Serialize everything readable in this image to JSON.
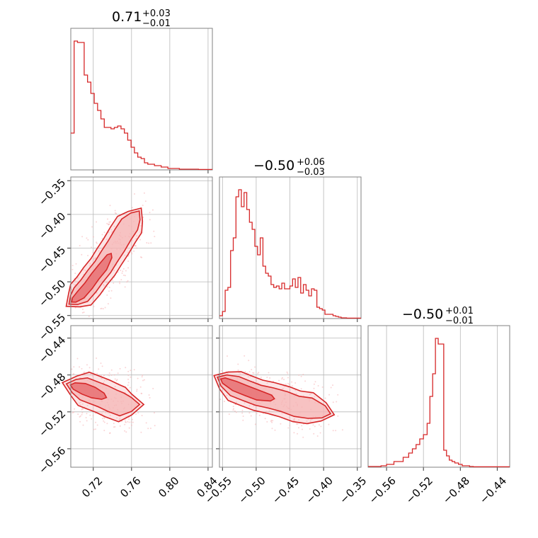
{
  "figure": {
    "type": "corner",
    "color": "#d62728",
    "fill_color": "#f5b3b4"
  },
  "chart_data": [
    {
      "type": "histogram",
      "param": 0,
      "title": {
        "median": "0.71",
        "plus": "+0.03",
        "minus": "−0.01"
      },
      "xlim": [
        0.6965,
        0.8445
      ],
      "x": [
        0.6965,
        0.7,
        0.7035,
        0.707,
        0.7105,
        0.714,
        0.7175,
        0.721,
        0.7245,
        0.728,
        0.7315,
        0.735,
        0.7385,
        0.742,
        0.7455,
        0.749,
        0.7525,
        0.756,
        0.7595,
        0.763,
        0.7665,
        0.77,
        0.7735,
        0.777,
        0.7805,
        0.784,
        0.7875,
        0.791,
        0.7945,
        0.798,
        0.8,
        0.81,
        0.82,
        0.83,
        0.8445
      ],
      "y": [
        0.26,
        0.91,
        0.9,
        0.9,
        0.67,
        0.62,
        0.54,
        0.47,
        0.42,
        0.36,
        0.3,
        0.3,
        0.29,
        0.3,
        0.31,
        0.29,
        0.26,
        0.21,
        0.16,
        0.12,
        0.09,
        0.08,
        0.05,
        0.04,
        0.04,
        0.03,
        0.03,
        0.02,
        0.02,
        0.01,
        0.01,
        0.005,
        0.005,
        0.003,
        0.01
      ],
      "ylim": [
        0,
        1
      ],
      "xticks": [],
      "x_gridlines": [
        0.72,
        0.76,
        0.8,
        0.84
      ]
    },
    {
      "type": "histogram",
      "param": 1,
      "title": {
        "median": "−0.50",
        "plus": "+0.06",
        "minus": "−0.03"
      },
      "xlim": [
        -0.5545,
        -0.3445
      ],
      "x": [
        -0.5545,
        -0.55,
        -0.546,
        -0.542,
        -0.538,
        -0.534,
        -0.53,
        -0.526,
        -0.522,
        -0.518,
        -0.514,
        -0.51,
        -0.506,
        -0.502,
        -0.498,
        -0.494,
        -0.49,
        -0.486,
        -0.482,
        -0.478,
        -0.474,
        -0.47,
        -0.466,
        -0.462,
        -0.458,
        -0.454,
        -0.45,
        -0.446,
        -0.442,
        -0.438,
        -0.434,
        -0.43,
        -0.426,
        -0.422,
        -0.418,
        -0.414,
        -0.41,
        -0.406,
        -0.402,
        -0.398,
        -0.394,
        -0.39,
        -0.386,
        -0.382,
        -0.378,
        -0.374,
        -0.37,
        -0.366,
        -0.362,
        -0.358,
        -0.354,
        -0.35,
        -0.3445
      ],
      "y": [
        0.02,
        0.05,
        0.2,
        0.22,
        0.48,
        0.57,
        0.86,
        0.91,
        0.79,
        0.89,
        0.77,
        0.68,
        0.63,
        0.51,
        0.45,
        0.57,
        0.37,
        0.32,
        0.3,
        0.24,
        0.22,
        0.23,
        0.21,
        0.25,
        0.21,
        0.21,
        0.23,
        0.28,
        0.22,
        0.29,
        0.18,
        0.24,
        0.2,
        0.16,
        0.21,
        0.2,
        0.08,
        0.07,
        0.06,
        0.03,
        0.03,
        0.03,
        0.02,
        0.015,
        0.01,
        0.005,
        0.005,
        0.003,
        0.003,
        0.003,
        0.003,
        0.003,
        0.003
      ],
      "ylim": [
        0,
        1
      ],
      "xticks": [],
      "x_gridlines": [
        -0.55,
        -0.5,
        -0.45,
        -0.4,
        -0.35
      ]
    },
    {
      "type": "histogram",
      "param": 2,
      "title": {
        "median": "−0.50",
        "plus": "+0.01",
        "minus": "−0.01"
      },
      "xlim": [
        -0.58,
        -0.4265
      ],
      "x": [
        -0.58,
        -0.566,
        -0.56,
        -0.556,
        -0.552,
        -0.546,
        -0.542,
        -0.536,
        -0.532,
        -0.528,
        -0.524,
        -0.52,
        -0.516,
        -0.513,
        -0.51,
        -0.507,
        -0.504,
        -0.501,
        -0.498,
        -0.495,
        -0.492,
        -0.489,
        -0.486,
        -0.482,
        -0.478,
        -0.474,
        -0.47,
        -0.466,
        -0.462,
        -0.458,
        -0.454,
        -0.4265
      ],
      "y": [
        0.005,
        0.01,
        0.02,
        0.02,
        0.04,
        0.04,
        0.07,
        0.1,
        0.13,
        0.16,
        0.2,
        0.23,
        0.31,
        0.5,
        0.66,
        0.91,
        0.87,
        0.87,
        0.12,
        0.08,
        0.05,
        0.04,
        0.03,
        0.02,
        0.01,
        0.01,
        0.005,
        0.003,
        0.003,
        0.003,
        0.003,
        0.003
      ],
      "ylim": [
        0,
        1
      ],
      "xticks": [
        "−0.56",
        "−0.52",
        "−0.48",
        "−0.44"
      ],
      "x_tickvals": [
        -0.56,
        -0.52,
        -0.48,
        -0.44
      ]
    },
    {
      "type": "density-contour",
      "params": [
        0,
        1
      ],
      "xlim": [
        0.6965,
        0.8445
      ],
      "ylim": [
        -0.5545,
        -0.3445
      ],
      "ridge": [
        [
          0.7,
          -0.527
        ],
        [
          0.707,
          -0.519
        ],
        [
          0.715,
          -0.506
        ],
        [
          0.722,
          -0.492
        ],
        [
          0.73,
          -0.478
        ],
        [
          0.737,
          -0.462
        ],
        [
          0.744,
          -0.447
        ],
        [
          0.751,
          -0.43
        ],
        [
          0.758,
          -0.415
        ],
        [
          0.764,
          -0.403
        ]
      ],
      "halfwidth_x": 0.008,
      "yticks": [
        "−0.35",
        "−0.40",
        "−0.45",
        "−0.50",
        "−0.55"
      ],
      "y_tickvals": [
        -0.35,
        -0.4,
        -0.45,
        -0.5,
        -0.55
      ],
      "x_gridlines": [
        0.72,
        0.76,
        0.8,
        0.84
      ]
    },
    {
      "type": "density-contour",
      "params": [
        0,
        2
      ],
      "xlim": [
        0.6965,
        0.8445
      ],
      "ylim": [
        -0.58,
        -0.4265
      ],
      "ridge": [
        [
          0.7,
          -0.492
        ],
        [
          0.71,
          -0.495
        ],
        [
          0.72,
          -0.499
        ],
        [
          0.73,
          -0.503
        ],
        [
          0.74,
          -0.508
        ],
        [
          0.75,
          -0.512
        ],
        [
          0.76,
          -0.512
        ]
      ],
      "halfwidth_y": 0.01,
      "xticks": [
        "0.72",
        "0.76",
        "0.80",
        "0.84"
      ],
      "x_tickvals": [
        0.72,
        0.76,
        0.8,
        0.84
      ],
      "yticks": [
        "−0.44",
        "−0.48",
        "−0.52",
        "−0.56"
      ],
      "y_tickvals": [
        -0.44,
        -0.48,
        -0.52,
        -0.56
      ]
    },
    {
      "type": "density-contour",
      "params": [
        1,
        2
      ],
      "xlim": [
        -0.5545,
        -0.3445
      ],
      "ylim": [
        -0.58,
        -0.4265
      ],
      "ridge": [
        [
          -0.548,
          -0.486
        ],
        [
          -0.532,
          -0.492
        ],
        [
          -0.515,
          -0.497
        ],
        [
          -0.497,
          -0.502
        ],
        [
          -0.478,
          -0.505
        ],
        [
          -0.458,
          -0.509
        ],
        [
          -0.44,
          -0.514
        ],
        [
          -0.42,
          -0.516
        ],
        [
          -0.4,
          -0.52
        ]
      ],
      "halfwidth_y": 0.009,
      "xticks": [
        "−0.55",
        "−0.50",
        "−0.45",
        "−0.40",
        "−0.35"
      ],
      "x_tickvals": [
        -0.55,
        -0.5,
        -0.45,
        -0.4,
        -0.35
      ]
    }
  ]
}
